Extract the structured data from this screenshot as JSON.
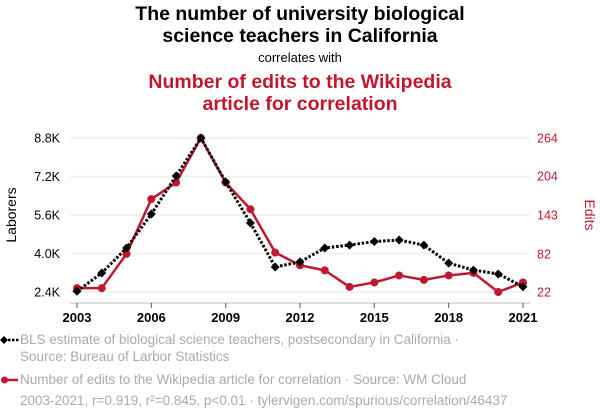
{
  "header": {
    "title_line1": "The number of university biological",
    "title_line2": "science teachers in California",
    "subtitle": "correlates with",
    "title2_line1": "Number of edits to the Wikipedia",
    "title2_line2": "article for correlation"
  },
  "colors": {
    "series1": "#000000",
    "series2": "#c0182f",
    "grid": "#eeeeee",
    "muted_text": "#aaaaaa"
  },
  "legend": {
    "series1_line1": "BLS estimate of biological science teachers, postsecondary in California ·",
    "series1_line2": "Source: Bureau of Larbor Statistics",
    "series2": "Number of edits to the Wikipedia article for correlation · Source: WM Cloud"
  },
  "footer": "2003-2021, r=0.919, r²=0.845, p<0.01 · tylervigen.com/spurious/correlation/46437",
  "chart_data": {
    "type": "line",
    "title": "The number of university biological science teachers in California correlates with Number of edits to the Wikipedia article for correlation",
    "x": [
      2003,
      2004,
      2005,
      2006,
      2007,
      2008,
      2009,
      2010,
      2011,
      2012,
      2013,
      2014,
      2015,
      2016,
      2017,
      2018,
      2019,
      2020,
      2021
    ],
    "xlabel": "",
    "x_ticks": [
      2003,
      2006,
      2009,
      2012,
      2015,
      2018,
      2021
    ],
    "x_tick_labels": [
      "2003",
      "2006",
      "2009",
      "2012",
      "2015",
      "2018",
      "2021"
    ],
    "xlim": [
      2003,
      2021
    ],
    "grid": true,
    "legend_position": "bottom",
    "series": [
      {
        "name": "BLS estimate of biological science teachers, postsecondary in California",
        "axis": "left",
        "style": "dotted",
        "marker": "diamond",
        "values": [
          2430,
          3190,
          4230,
          5640,
          7220,
          8800,
          6970,
          5270,
          3440,
          3650,
          4230,
          4350,
          4500,
          4560,
          4350,
          3600,
          3310,
          3150,
          2620
        ]
      },
      {
        "name": "Number of edits to the Wikipedia article for correlation",
        "axis": "right",
        "style": "solid",
        "marker": "circle",
        "values": [
          28,
          28,
          82,
          168,
          194,
          264,
          194,
          152,
          84,
          64,
          56,
          30,
          37,
          48,
          41,
          48,
          52,
          22,
          37
        ]
      }
    ],
    "y_left": {
      "label": "Laborers",
      "ylim": [
        2400,
        8800
      ],
      "ticks": [
        2400,
        4000,
        5600,
        7200,
        8800
      ],
      "tick_labels": [
        "2.4K",
        "4.0K",
        "5.6K",
        "7.2K",
        "8.8K"
      ]
    },
    "y_right": {
      "label": "Edits",
      "ylim": [
        22,
        264
      ],
      "ticks": [
        22,
        82,
        143,
        204,
        264
      ],
      "tick_labels": [
        "22",
        "82",
        "143",
        "204",
        "264"
      ]
    }
  }
}
